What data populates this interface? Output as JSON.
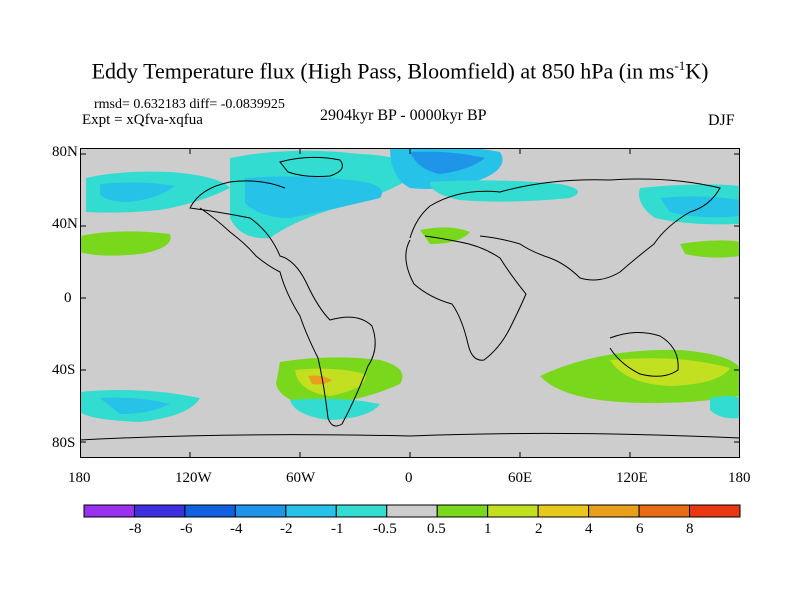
{
  "title": {
    "main": "Eddy Temperature flux (High Pass, Bloomfield) at 850 hPa (in ms",
    "sup": "-1",
    "end": "K)"
  },
  "subtitle": {
    "stats": "rmsd= 0.632183 diff= -0.0839925",
    "expt": "Expt = xQfva-xqfua",
    "period": "2904kyr BP - 0000kyr BP",
    "season": "DJF"
  },
  "axes": {
    "lat_labels": [
      "80N",
      "40N",
      "0",
      "40S",
      "80S"
    ],
    "lon_labels": [
      "180",
      "120W",
      "60W",
      "0",
      "60E",
      "120E",
      "180"
    ]
  },
  "colorbar": {
    "labels": [
      "-8",
      "-6",
      "-4",
      "-2",
      "-1",
      "-0.5",
      "0.5",
      "1",
      "2",
      "4",
      "6",
      "8"
    ],
    "colors": [
      "#9a30f0",
      "#3b2fe0",
      "#1060e0",
      "#1e95e8",
      "#27c2e8",
      "#33dcd0",
      "#cdcdcd",
      "#7ad81c",
      "#c2e020",
      "#e8c81c",
      "#e8a01a",
      "#e86c16",
      "#e83812"
    ]
  },
  "map_colors": {
    "background": "#cdcdcd",
    "coast": "#000000"
  }
}
